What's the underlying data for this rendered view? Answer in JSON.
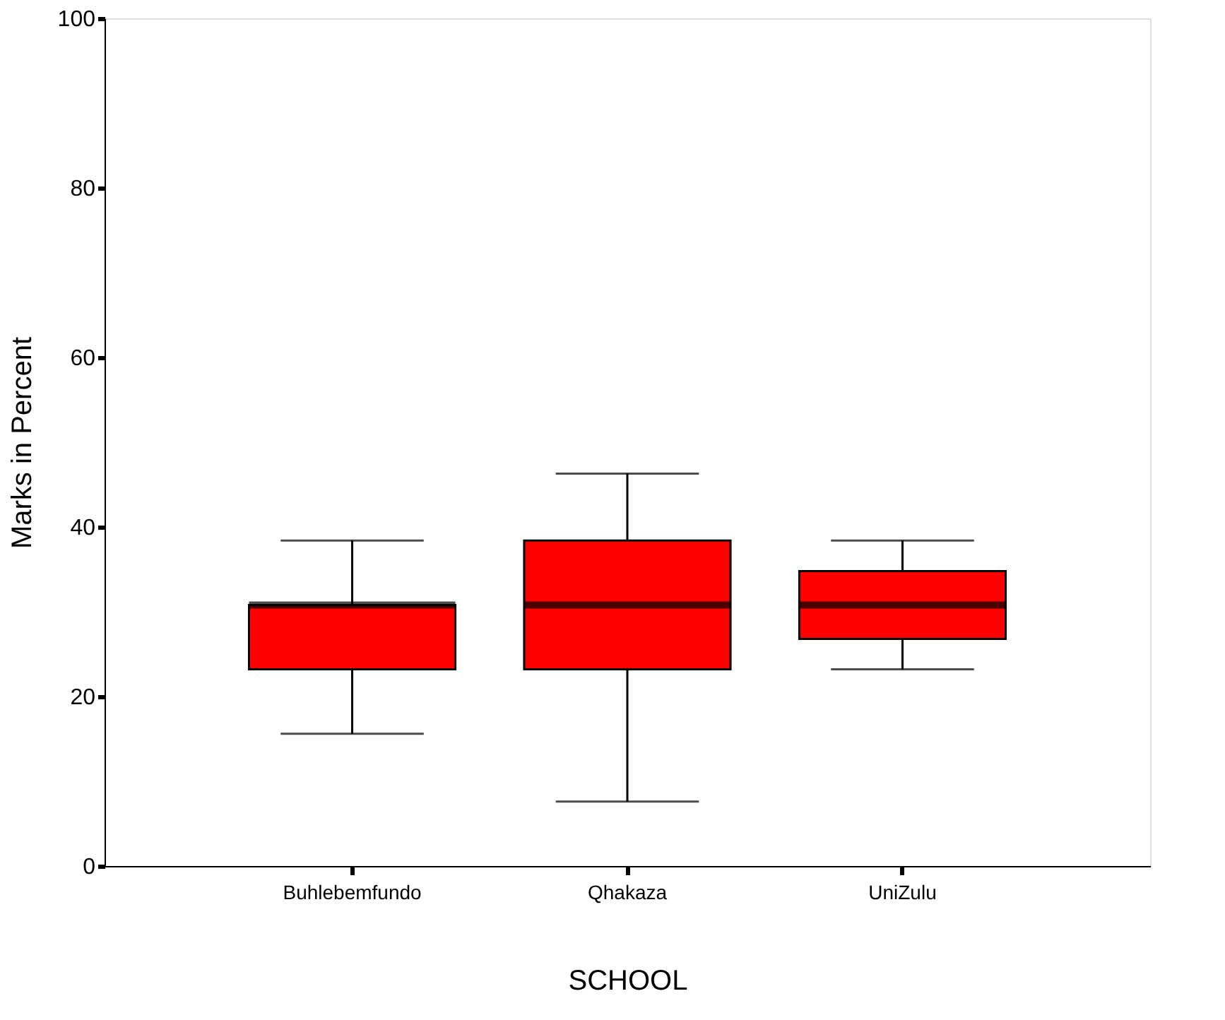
{
  "chart_data": {
    "type": "box",
    "xlabel": "SCHOOL",
    "ylabel": "Marks in Percent",
    "categories": [
      "Buhlebemfundo",
      "Qhakaza",
      "UniZulu"
    ],
    "color": "#ff0000",
    "boxes": [
      {
        "low": 15.6,
        "q1": 23.2,
        "median": 30.8,
        "q3": 30.8,
        "high": 38.4
      },
      {
        "low": 7.6,
        "q1": 23.2,
        "median": 30.8,
        "q3": 38.4,
        "high": 46.3
      },
      {
        "low": 23.2,
        "q1": 26.8,
        "median": 30.8,
        "q3": 34.8,
        "high": 38.4
      }
    ],
    "ylim": [
      0,
      100
    ],
    "yticks": [
      0,
      20,
      40,
      60,
      80,
      100
    ]
  }
}
